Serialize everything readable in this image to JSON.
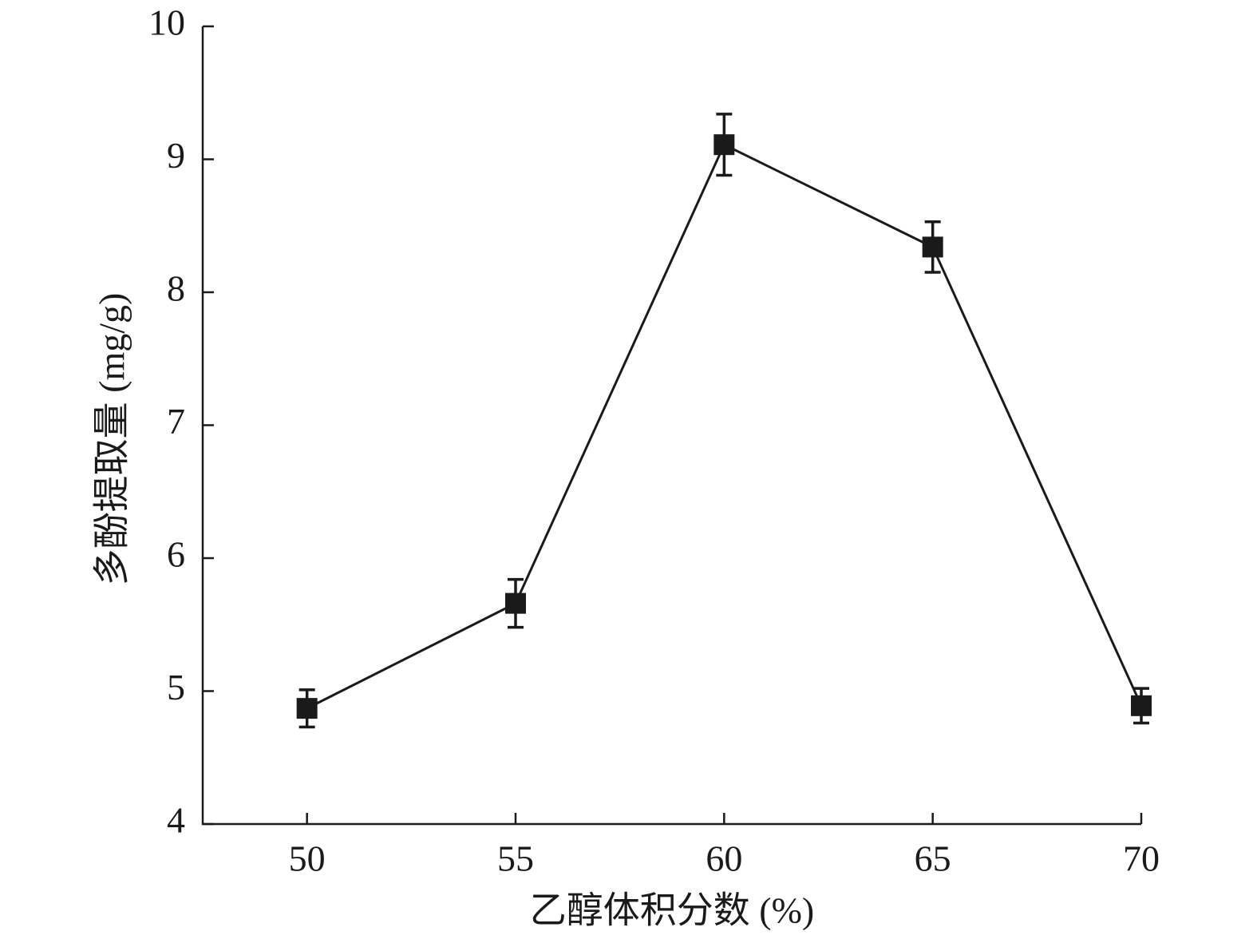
{
  "chart_data": {
    "type": "line",
    "xlabel": "乙醇体积分数 (%)",
    "ylabel": "多酚提取量 (mg/g)",
    "x": [
      50,
      55,
      60,
      65,
      70
    ],
    "values": [
      4.87,
      5.66,
      9.11,
      8.34,
      4.89
    ],
    "errors": [
      0.14,
      0.18,
      0.23,
      0.19,
      0.13
    ],
    "color": "#1a1a1a",
    "xlim": [
      47.5,
      70
    ],
    "xticks": [
      50,
      55,
      60,
      65,
      70
    ],
    "ylim": [
      4,
      10
    ],
    "yticks": [
      4,
      5,
      6,
      7,
      8,
      9,
      10
    ],
    "grid": false
  }
}
